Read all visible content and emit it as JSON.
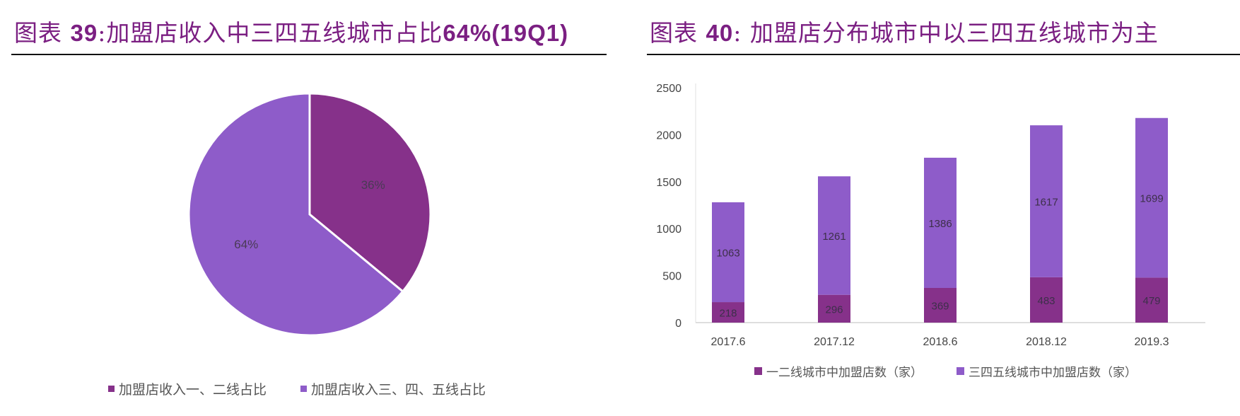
{
  "left_figure": {
    "title_prefix": "图表 ",
    "title_number": "39",
    "title_text": ":加盟店收入中三四五线城市占比",
    "title_suffix": "64%(19Q1)",
    "legend": [
      {
        "label": "加盟店收入一、二线占比",
        "color": "#86318a"
      },
      {
        "label": "加盟店收入三、四、五线占比",
        "color": "#8e5cc9"
      }
    ]
  },
  "right_figure": {
    "title_prefix": "图表 ",
    "title_number": "40",
    "title_text": ": 加盟店分布城市中以三四五线城市为主",
    "legend": [
      {
        "label": "一二线城市中加盟店数（家）",
        "color": "#86318a"
      },
      {
        "label": "三四五线城市中加盟店数（家）",
        "color": "#8e5cc9"
      }
    ]
  },
  "chart_data": [
    {
      "type": "pie",
      "title": "加盟店收入中三四五线城市占比64%(19Q1)",
      "categories": [
        "加盟店收入一、二线占比",
        "加盟店收入三、四、五线占比"
      ],
      "values": [
        36,
        64
      ],
      "labels": [
        "36%",
        "64%"
      ],
      "colors": [
        "#86318a",
        "#8e5cc9"
      ],
      "legend_position": "bottom"
    },
    {
      "type": "bar",
      "stacked": true,
      "title": "加盟店分布城市中以三四五线城市为主",
      "categories": [
        "2017.6",
        "2017.12",
        "2018.6",
        "2018.12",
        "2019.3"
      ],
      "series": [
        {
          "name": "一二线城市中加盟店数（家）",
          "values": [
            218,
            296,
            369,
            483,
            479
          ],
          "color": "#86318a"
        },
        {
          "name": "三四五线城市中加盟店数（家）",
          "values": [
            1063,
            1261,
            1386,
            1617,
            1699
          ],
          "color": "#8e5cc9"
        }
      ],
      "xlabel": "",
      "ylabel": "",
      "ylim": [
        0,
        2500
      ],
      "yticks": [
        0,
        500,
        1000,
        1500,
        2000,
        2500
      ],
      "grid": false,
      "legend_position": "bottom"
    }
  ]
}
